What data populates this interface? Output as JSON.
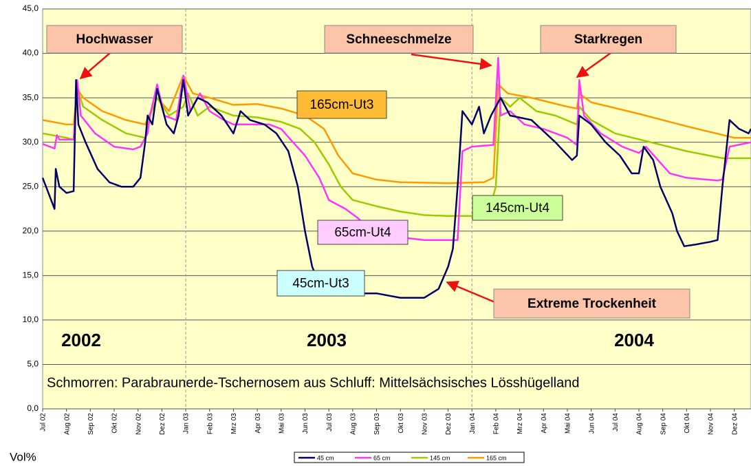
{
  "chart_data": {
    "type": "line",
    "subtitle": "Schmorren: Parabraunerde-Tschernosem aus Schluff: Mittelsächsisches Lösshügelland",
    "y_label": "Vol%",
    "year_labels": [
      "2002",
      "2003",
      "2004"
    ],
    "callouts": [
      "Hochwasser",
      "Schneeschmelze",
      "Starkregen",
      "Extreme Trockenheit"
    ],
    "xlim": [
      0,
      29.7
    ],
    "xticks": [
      {
        "value": 0,
        "label": "Jul 02"
      },
      {
        "value": 1,
        "label": "Aug 02"
      },
      {
        "value": 2,
        "label": "Sep 02"
      },
      {
        "value": 3,
        "label": "Okt 02"
      },
      {
        "value": 4,
        "label": "Nov 02"
      },
      {
        "value": 5,
        "label": "Dez 02"
      },
      {
        "value": 6,
        "label": "Jan 03"
      },
      {
        "value": 7,
        "label": "Feb 03"
      },
      {
        "value": 8,
        "label": "Mrz 03"
      },
      {
        "value": 9,
        "label": "Apr 03"
      },
      {
        "value": 10,
        "label": "Mai 03"
      },
      {
        "value": 11,
        "label": "Jun 03"
      },
      {
        "value": 12,
        "label": "Jul 03"
      },
      {
        "value": 13,
        "label": "Aug 03"
      },
      {
        "value": 14,
        "label": "Sep 03"
      },
      {
        "value": 15,
        "label": "Okt 03"
      },
      {
        "value": 16,
        "label": "Nov 03"
      },
      {
        "value": 17,
        "label": "Dez 03"
      },
      {
        "value": 18,
        "label": "Jan 04"
      },
      {
        "value": 19,
        "label": "Feb 04"
      },
      {
        "value": 20,
        "label": "Mrz 04"
      },
      {
        "value": 21,
        "label": "Apr 04"
      },
      {
        "value": 22,
        "label": "Mai 04"
      },
      {
        "value": 23,
        "label": "Jun 04"
      },
      {
        "value": 24,
        "label": "Jul 04"
      },
      {
        "value": 25,
        "label": "Aug 04"
      },
      {
        "value": 26,
        "label": "Sep 04"
      },
      {
        "value": 27,
        "label": "Okt 04"
      },
      {
        "value": 28,
        "label": "Nov 04"
      },
      {
        "value": 29,
        "label": "Dez 04"
      }
    ],
    "ylim": [
      0,
      45
    ],
    "yticks": [
      {
        "value": 0,
        "label": "0,0"
      },
      {
        "value": 5,
        "label": "5,0"
      },
      {
        "value": 10,
        "label": "10,0"
      },
      {
        "value": 15,
        "label": "15,0"
      },
      {
        "value": 20,
        "label": "20,0"
      },
      {
        "value": 25,
        "label": "25,0"
      },
      {
        "value": 30,
        "label": "30,0"
      },
      {
        "value": 35,
        "label": "35,0"
      },
      {
        "value": 40,
        "label": "40,0"
      },
      {
        "value": 45,
        "label": "45,0"
      }
    ],
    "grid": true,
    "series": [
      {
        "name": "45 cm",
        "label": "45cm-Ut3",
        "color": "#000066",
        "x": [
          0,
          0.5,
          0.55,
          0.7,
          1,
          1.3,
          1.4,
          1.5,
          1.8,
          2.3,
          2.8,
          3.3,
          3.8,
          4.1,
          4.3,
          4.4,
          4.6,
          4.8,
          5.2,
          5.5,
          5.7,
          5.9,
          6.1,
          6.5,
          6.9,
          7.5,
          8,
          8.3,
          8.7,
          9.3,
          9.8,
          10.3,
          10.7,
          11,
          11.3,
          11.6,
          12,
          13,
          14,
          15,
          16,
          16.6,
          17,
          17.2,
          17.4,
          17.6,
          18,
          18.3,
          18.5,
          18.8,
          19.2,
          19.6,
          20.5,
          21.5,
          22.2,
          22.4,
          22.5,
          23,
          23.6,
          24.2,
          24.7,
          25,
          25.2,
          25.6,
          25.9,
          26.4,
          26.6,
          26.9,
          27.4,
          28,
          28.3,
          28.5,
          28.8,
          29.2,
          29.6,
          29.7
        ],
        "values": [
          26,
          22.5,
          27,
          25,
          24.3,
          24.5,
          37,
          32,
          30,
          27,
          25.5,
          25,
          25,
          26,
          30,
          33,
          32,
          36,
          32,
          31,
          33,
          37,
          33,
          35,
          34.5,
          33,
          31,
          33.5,
          32.5,
          32,
          31,
          29,
          25,
          20,
          16,
          14,
          13.2,
          13,
          13,
          12.5,
          12.5,
          13.5,
          16,
          18,
          25,
          33.5,
          32,
          34,
          31,
          33,
          35,
          33,
          32.5,
          30,
          28,
          28.5,
          33,
          32,
          30,
          28.5,
          26.5,
          26.5,
          29.5,
          28,
          25,
          22,
          20,
          18.3,
          18.5,
          18.8,
          19,
          25,
          32.5,
          31.5,
          31,
          31.5
        ]
      },
      {
        "name": "65 cm",
        "label": "65cm-Ut4",
        "color": "#ff33ff",
        "x": [
          0,
          0.5,
          0.6,
          0.7,
          1.3,
          1.45,
          1.6,
          2.2,
          3,
          3.8,
          4.1,
          4.4,
          4.5,
          4.8,
          5.1,
          5.6,
          5.9,
          6.2,
          6.6,
          7,
          7.6,
          8,
          8.8,
          9.5,
          10,
          10.5,
          11,
          11.6,
          12,
          12.7,
          13.2,
          13.6,
          14.2,
          15,
          16,
          17,
          17.4,
          17.6,
          18,
          18.9,
          19.1,
          19.2,
          19.6,
          20.2,
          21,
          22,
          22.4,
          22.5,
          22.7,
          23.4,
          24.3,
          25,
          25.3,
          25.8,
          26.3,
          27,
          28.3,
          28.5,
          28.8,
          29.7
        ],
        "values": [
          29.8,
          29.3,
          30.8,
          30.3,
          30.3,
          37,
          33,
          31,
          29.5,
          29.2,
          29.5,
          31,
          33,
          36.5,
          33,
          32.5,
          37.5,
          33.5,
          35.5,
          33.5,
          32.5,
          32,
          32,
          32,
          31.5,
          30,
          28.5,
          26,
          23.5,
          22.5,
          21.5,
          20.5,
          19.5,
          19.3,
          19,
          19,
          19,
          29,
          29.5,
          29.7,
          39.5,
          33,
          33.5,
          32,
          31.5,
          30.5,
          29.7,
          37,
          33,
          31,
          29.5,
          28.8,
          29.5,
          28,
          26.5,
          26,
          25.7,
          25.8,
          29.5,
          30
        ]
      },
      {
        "name": "145 cm",
        "label": "145cm-Ut4",
        "color": "#99cc00",
        "x": [
          0,
          1,
          1.3,
          1.45,
          1.7,
          2.5,
          3.5,
          4.3,
          4.5,
          4.8,
          5.3,
          5.9,
          6.1,
          6.5,
          7,
          8,
          9,
          10,
          10.8,
          11.4,
          12,
          12.5,
          13,
          14,
          15,
          16,
          17,
          18,
          18.5,
          18.8,
          19,
          19.2,
          19.6,
          20,
          20.7,
          21.5,
          22.4,
          22.5,
          23,
          24,
          25.5,
          27,
          28.5,
          29.7
        ],
        "values": [
          31,
          30.5,
          30.3,
          36,
          34,
          32.5,
          31,
          30.5,
          33,
          35,
          33,
          34,
          35.5,
          33,
          34,
          33,
          32.8,
          32.3,
          31.5,
          30,
          27.5,
          25,
          23.5,
          22.8,
          22.2,
          21.8,
          21.7,
          21.7,
          21.8,
          23,
          25,
          35,
          34,
          35,
          33.5,
          33,
          32,
          34,
          32.5,
          31,
          30,
          29,
          28.2,
          28.2
        ]
      },
      {
        "name": "165 cm",
        "label": "165cm-Ut3",
        "color": "#ff9900",
        "x": [
          0,
          1,
          1.3,
          1.45,
          1.7,
          2.5,
          3.5,
          4.3,
          4.8,
          5.3,
          5.9,
          6.3,
          7,
          8,
          9,
          10,
          11,
          11.8,
          12.4,
          13,
          14,
          15,
          17,
          18.5,
          18.9,
          19.1,
          19.5,
          20.5,
          22,
          22.4,
          22.5,
          23,
          25,
          27,
          29,
          29.7
        ],
        "values": [
          32.5,
          32,
          32,
          36,
          35,
          33.5,
          32.5,
          32,
          35,
          33.5,
          37.5,
          35.5,
          35,
          34.2,
          34.3,
          33.8,
          33,
          31.5,
          28.5,
          26.5,
          25.8,
          25.5,
          25.4,
          25.5,
          26,
          36.5,
          35.5,
          35,
          34,
          33.8,
          35.5,
          34.5,
          33.2,
          31.8,
          30.5,
          30.5
        ]
      }
    ]
  }
}
